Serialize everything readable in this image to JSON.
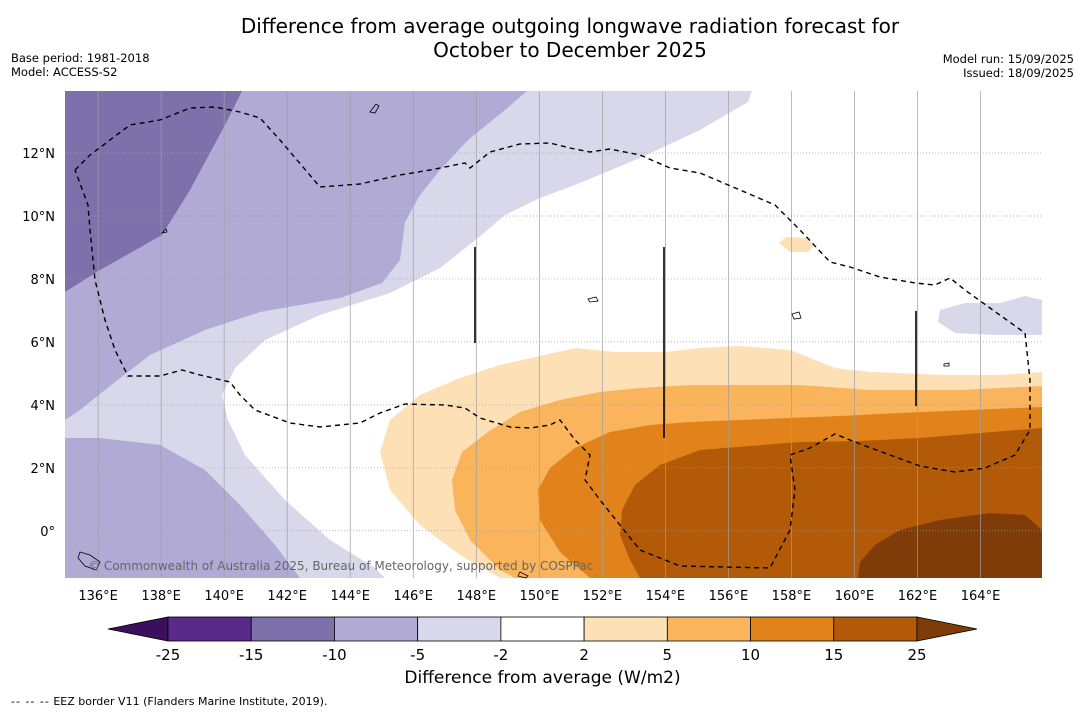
{
  "title_line1": "Difference from average outgoing longwave radiation forecast for",
  "title_line2": "October to December 2025",
  "meta_left": {
    "base_period": "Base period: 1981-2018",
    "model": "Model: ACCESS-S2"
  },
  "meta_right": {
    "model_run": "Model run: 15/09/2025",
    "issued": "Issued: 18/09/2025"
  },
  "copyright": "© Commonwealth of Australia 2025, Bureau of Meteorology, supported by COSPPac",
  "lon_labels": [
    "136°E",
    "138°E",
    "140°E",
    "142°E",
    "144°E",
    "146°E",
    "148°E",
    "150°E",
    "152°E",
    "154°E",
    "156°E",
    "158°E",
    "160°E",
    "162°E",
    "164°E"
  ],
  "lat_labels": [
    "12°N",
    "10°N",
    "8°N",
    "6°N",
    "4°N",
    "2°N",
    "0°"
  ],
  "colorbar": {
    "title": "Difference from average (W/m2)",
    "tick_labels": [
      "-25",
      "-15",
      "-10",
      "-5",
      "-2",
      "2",
      "5",
      "10",
      "15",
      "25"
    ],
    "colors": [
      "#3b0f5e",
      "#5a2a8a",
      "#7e71ab",
      "#b0aad5",
      "#d8d8ea",
      "#ffffff",
      "#fde0b6",
      "#f9b45c",
      "#e1821a",
      "#b35a08",
      "#7f3b08"
    ]
  },
  "footer": {
    "line_marker": "-- -- --",
    "text": "EEZ border V11 (Flanders Marine Institute, 2019)."
  },
  "palette": {
    "dark_purple": "#7e71ab",
    "mid_purple": "#b0aad5",
    "light_purple": "#d8d8ea",
    "light_orange": "#fde0b6",
    "orange": "#f9b45c",
    "dark_orange": "#e1821a",
    "brown": "#b35a08",
    "dark_brown": "#7f3b08"
  }
}
